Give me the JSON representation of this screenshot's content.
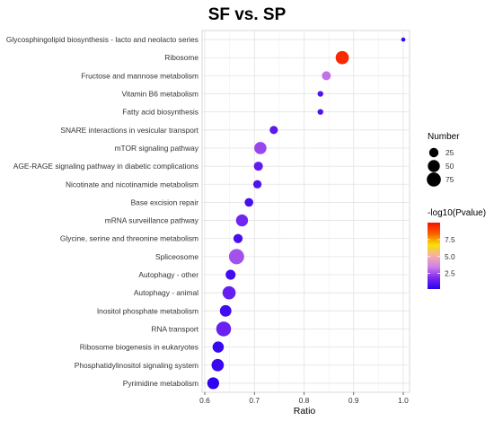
{
  "chart_data": {
    "type": "scatter",
    "title": "SF vs. SP",
    "xlabel": "Ratio",
    "xlim": [
      0.6,
      1.0
    ],
    "x_ticks": [
      "0.6",
      "0.7",
      "0.8",
      "0.9",
      "1.0"
    ],
    "x_tick_values": [
      0.6,
      0.7,
      0.8,
      0.9,
      1.0
    ],
    "categories": [
      "Glycosphingolipid biosynthesis - lacto and neolacto series",
      "Ribosome",
      "Fructose and mannose metabolism",
      "Vitamin B6 metabolism",
      "Fatty acid biosynthesis",
      "SNARE interactions in vesicular transport",
      "mTOR signaling pathway",
      "AGE-RAGE signaling pathway in diabetic complications",
      "Nicotinate and nicotinamide metabolism",
      "Base excision repair",
      "mRNA surveillance pathway",
      "Glycine, serine and threonine metabolism",
      "Spliceosome",
      "Autophagy - other",
      "Autophagy - animal",
      "Inositol phosphate metabolism",
      "RNA transport",
      "Ribosome biogenesis in eukaryotes",
      "Phosphatidylinositol signaling system",
      "Pyrimidine metabolism"
    ],
    "points": [
      {
        "category": "Glycosphingolipid biosynthesis - lacto and neolacto series",
        "ratio": 1.0,
        "number": 1,
        "neg_log10_p": 0.5
      },
      {
        "category": "Ribosome",
        "ratio": 0.877,
        "number": 64,
        "neg_log10_p": 9.5
      },
      {
        "category": "Fructose and mannose metabolism",
        "ratio": 0.845,
        "number": 22,
        "neg_log10_p": 3.2
      },
      {
        "category": "Vitamin B6 metabolism",
        "ratio": 0.833,
        "number": 5,
        "neg_log10_p": 1.0
      },
      {
        "category": "Fatty acid biosynthesis",
        "ratio": 0.833,
        "number": 5,
        "neg_log10_p": 1.0
      },
      {
        "category": "SNARE interactions in vesicular transport",
        "ratio": 0.739,
        "number": 17,
        "neg_log10_p": 1.2
      },
      {
        "category": "mTOR signaling pathway",
        "ratio": 0.712,
        "number": 52,
        "neg_log10_p": 2.4
      },
      {
        "category": "AGE-RAGE signaling pathway in diabetic complications",
        "ratio": 0.708,
        "number": 23,
        "neg_log10_p": 1.3
      },
      {
        "category": "Nicotinate and nicotinamide metabolism",
        "ratio": 0.706,
        "number": 18,
        "neg_log10_p": 1.0
      },
      {
        "category": "Base excision repair",
        "ratio": 0.689,
        "number": 20,
        "neg_log10_p": 0.8
      },
      {
        "category": "mRNA surveillance pathway",
        "ratio": 0.675,
        "number": 50,
        "neg_log10_p": 1.7
      },
      {
        "category": "Glycine, serine and threonine metabolism",
        "ratio": 0.667,
        "number": 24,
        "neg_log10_p": 0.8
      },
      {
        "category": "Spliceosome",
        "ratio": 0.664,
        "number": 91,
        "neg_log10_p": 2.6
      },
      {
        "category": "Autophagy - other",
        "ratio": 0.652,
        "number": 30,
        "neg_log10_p": 0.7
      },
      {
        "category": "Autophagy - animal",
        "ratio": 0.649,
        "number": 63,
        "neg_log10_p": 1.4
      },
      {
        "category": "Inositol phosphate metabolism",
        "ratio": 0.642,
        "number": 45,
        "neg_log10_p": 0.7
      },
      {
        "category": "RNA transport",
        "ratio": 0.638,
        "number": 85,
        "neg_log10_p": 1.5
      },
      {
        "category": "Ribosome biogenesis in eukaryotes",
        "ratio": 0.627,
        "number": 42,
        "neg_log10_p": 0.5
      },
      {
        "category": "Phosphatidylinositol signaling system",
        "ratio": 0.626,
        "number": 53,
        "neg_log10_p": 0.5
      },
      {
        "category": "Pyrimidine metabolism",
        "ratio": 0.617,
        "number": 48,
        "neg_log10_p": 0.3
      }
    ],
    "size_legend": {
      "title": "Number",
      "values": [
        25,
        50,
        75
      ],
      "labels": [
        "25",
        "50",
        "75"
      ]
    },
    "color_legend": {
      "title": "-log10(Pvalue)",
      "range": [
        0.2,
        10
      ],
      "ticks": [
        2.5,
        5.0,
        7.5
      ],
      "labels": [
        "2.5",
        "5.0",
        "7.5"
      ],
      "colors": [
        "#2a00f0",
        "#7a28f0",
        "#d080e8",
        "#f4b0a8",
        "#f8e000",
        "#f86000",
        "#f81000"
      ]
    },
    "grid": true,
    "legend_position": "right"
  }
}
